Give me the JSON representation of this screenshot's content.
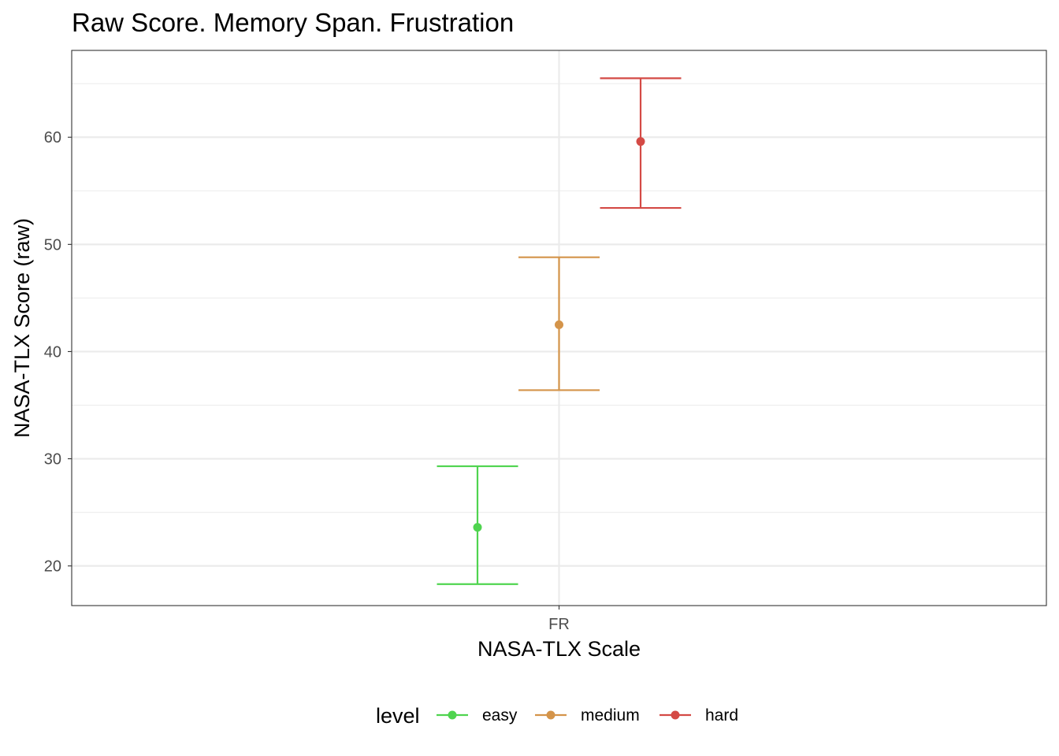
{
  "chart_data": {
    "type": "scatter",
    "title": "Raw Score. Memory Span. Frustration",
    "xlabel": "NASA-TLX Scale",
    "ylabel": "NASA-TLX Score (raw)",
    "categories": [
      "FR"
    ],
    "ylim": [
      16.3,
      68.1
    ],
    "yticks": [
      20,
      30,
      40,
      50,
      60
    ],
    "grid": true,
    "legend": {
      "title": "level",
      "position": "bottom"
    },
    "series": [
      {
        "name": "easy",
        "color": "#4fd44f",
        "x": "FR",
        "mean": 23.6,
        "lower": 18.3,
        "upper": 29.3
      },
      {
        "name": "medium",
        "color": "#d4944a",
        "x": "FR",
        "mean": 42.5,
        "lower": 36.4,
        "upper": 48.8
      },
      {
        "name": "hard",
        "color": "#d44a45",
        "x": "FR",
        "mean": 59.6,
        "lower": 53.4,
        "upper": 65.5
      }
    ]
  }
}
